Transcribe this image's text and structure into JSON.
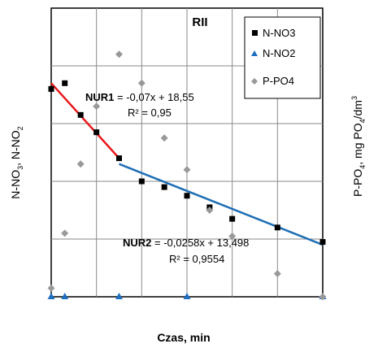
{
  "chart_data": {
    "type": "scatter",
    "title": "RII",
    "xlabel": "Czas, min",
    "ylabel_left_parts": [
      "N-NO",
      "3",
      ",  N-NO",
      "2"
    ],
    "ylabel_right_parts": [
      "P-PO",
      "4",
      ", mg PO",
      "4",
      "/dm",
      "3"
    ],
    "xlim": [
      0,
      60
    ],
    "ylim": [
      0,
      5
    ],
    "grid": true,
    "legend_position": "top-right",
    "series": [
      {
        "name": "N-NO3",
        "marker": "square",
        "color": "#000000",
        "points": [
          [
            0,
            3.6
          ],
          [
            3,
            3.7
          ],
          [
            6.5,
            3.15
          ],
          [
            10,
            2.85
          ],
          [
            15,
            2.4
          ],
          [
            20,
            2.0
          ],
          [
            25,
            1.9
          ],
          [
            30,
            1.75
          ],
          [
            35,
            1.55
          ],
          [
            40,
            1.35
          ],
          [
            50,
            1.2
          ],
          [
            60,
            0.95
          ]
        ]
      },
      {
        "name": "N-NO2",
        "marker": "triangle",
        "color": "#1f6fc0",
        "points": [
          [
            0,
            0
          ],
          [
            3,
            0
          ],
          [
            15,
            0
          ],
          [
            30,
            0
          ],
          [
            60,
            0
          ]
        ]
      },
      {
        "name": "P-PO4",
        "marker": "diamond",
        "color": "#999999",
        "points": [
          [
            0,
            0.15
          ],
          [
            3,
            1.1
          ],
          [
            6.5,
            2.3
          ],
          [
            10,
            3.3
          ],
          [
            15,
            4.2
          ],
          [
            20,
            3.7
          ],
          [
            25,
            2.75
          ],
          [
            30,
            2.2
          ],
          [
            35,
            1.5
          ],
          [
            40,
            1.05
          ],
          [
            50,
            0.4
          ],
          [
            60,
            0.0
          ]
        ]
      }
    ],
    "trendlines": [
      {
        "name": "NUR1",
        "color": "#e8191c",
        "x_range": [
          0,
          15
        ],
        "y_range": [
          3.7,
          2.4
        ],
        "label_bold": "NUR1",
        "label_eq": " = -0,07x + 18,55",
        "label_r2": "R² = 0,95"
      },
      {
        "name": "NUR2",
        "color": "#1f6fb5",
        "x_range": [
          15,
          60
        ],
        "y_range": [
          2.3,
          0.9
        ],
        "label_bold": "NUR2",
        "label_eq": " = -0,0258x + 13,498",
        "label_r2": "R² = 0,9554"
      }
    ]
  }
}
